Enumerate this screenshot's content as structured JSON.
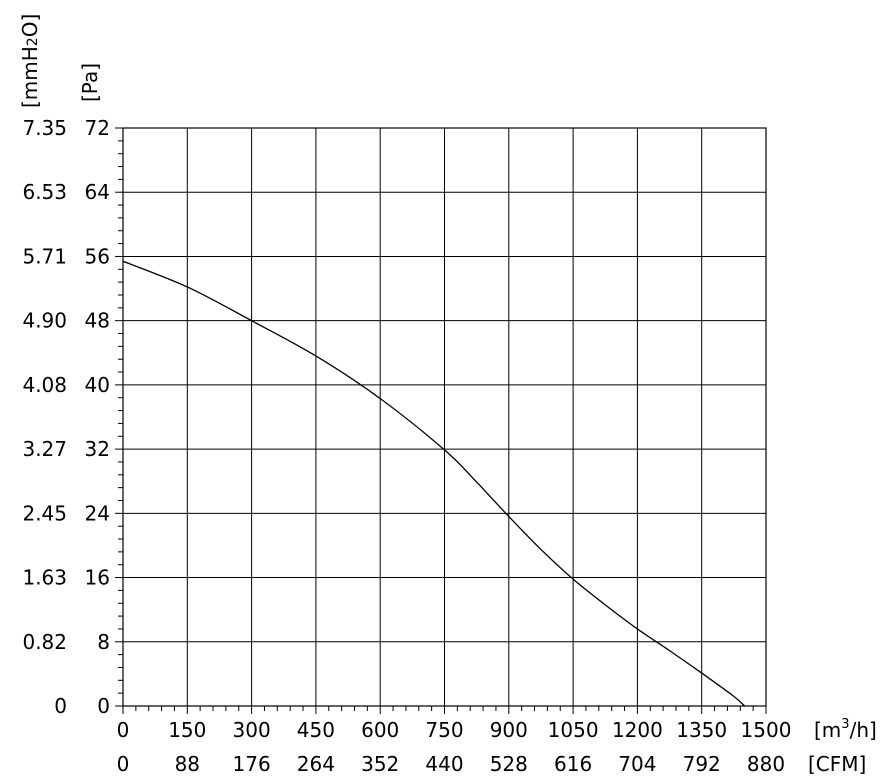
{
  "chart_data": {
    "type": "line",
    "title": "",
    "xlabel": "",
    "ylabel": "",
    "xlim": [
      0,
      1500
    ],
    "ylim": [
      0,
      72
    ],
    "grid": true,
    "x_unit_label": "[m3/h]",
    "x_unit_main": "[m",
    "x_unit_sup": "3",
    "x_unit_tail": "/h]",
    "x2_unit_label": "[CFM]",
    "y_unit_label": "[Pa]",
    "y2_unit_label": "[mmH2O]",
    "y2_unit_main": "[mmH",
    "y2_unit_sub": "2",
    "y2_unit_tail": "O]",
    "x_ticks": [
      "0",
      "150",
      "300",
      "450",
      "600",
      "750",
      "900",
      "1050",
      "1200",
      "1350",
      "1500"
    ],
    "x_tick_values": [
      0,
      150,
      300,
      450,
      600,
      750,
      900,
      1050,
      1200,
      1350,
      1500
    ],
    "x2_ticks": [
      "0",
      "88",
      "176",
      "264",
      "352",
      "440",
      "528",
      "616",
      "704",
      "792",
      "880"
    ],
    "y_ticks": [
      "0",
      "8",
      "16",
      "24",
      "32",
      "40",
      "48",
      "56",
      "64",
      "72"
    ],
    "y_tick_values": [
      0,
      8,
      16,
      24,
      32,
      40,
      48,
      56,
      64,
      72
    ],
    "y2_ticks": [
      "0",
      "0.82",
      "1.63",
      "2.45",
      "3.27",
      "4.08",
      "4.90",
      "5.71",
      "6.53",
      "7.35"
    ],
    "series": [
      {
        "x": [
          0,
          150,
          300,
          450,
          600,
          750,
          825,
          900,
          975,
          1050,
          1125,
          1200,
          1275,
          1350,
          1425,
          1450
        ],
        "y": [
          55.4,
          52.2,
          48.0,
          43.6,
          38.3,
          31.9,
          27.9,
          23.6,
          19.5,
          15.8,
          12.6,
          9.6,
          6.9,
          4.1,
          1.2,
          0
        ]
      }
    ]
  }
}
